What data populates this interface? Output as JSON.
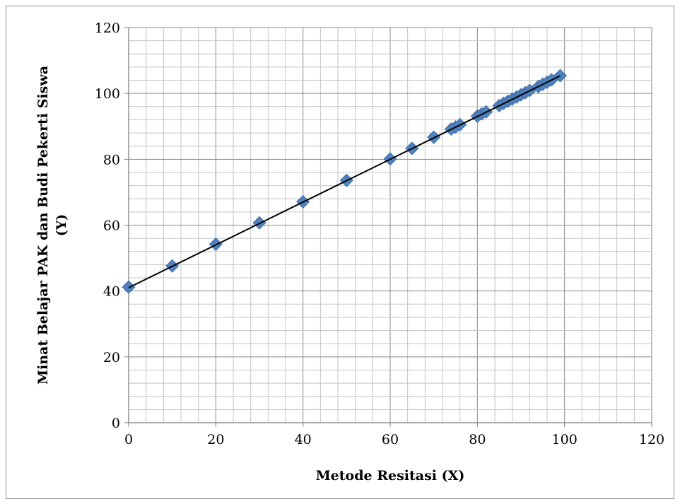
{
  "chart_data": {
    "type": "scatter",
    "title": "",
    "xlabel": "Metode Resitasi (X)",
    "ylabel_line1": "Minat  Belajar PAK dan Budi Pekerti  Siswa",
    "ylabel_line2": "(Y)",
    "xlim": [
      0,
      120
    ],
    "ylim": [
      0,
      120
    ],
    "x_major_ticks": [
      "0",
      "20",
      "40",
      "60",
      "80",
      "100",
      "120"
    ],
    "y_major_ticks": [
      "0",
      "20",
      "40",
      "60",
      "80",
      "100",
      "120"
    ],
    "minor_grid_step": 4,
    "major_grid_step": 20,
    "grid": true,
    "legend": "none",
    "marker_color": "#4f81bd",
    "marker_shape": "diamond",
    "trendline": {
      "slope": 0.65,
      "intercept": 41.0,
      "x_range": [
        0,
        99
      ],
      "color": "#000000"
    },
    "points": [
      {
        "x": 0,
        "y": 41.2
      },
      {
        "x": 10,
        "y": 47.6
      },
      {
        "x": 20,
        "y": 54.2
      },
      {
        "x": 30,
        "y": 60.7
      },
      {
        "x": 40,
        "y": 67.1
      },
      {
        "x": 50,
        "y": 73.6
      },
      {
        "x": 60,
        "y": 80.1
      },
      {
        "x": 65,
        "y": 83.3
      },
      {
        "x": 70,
        "y": 86.7
      },
      {
        "x": 74,
        "y": 89.2
      },
      {
        "x": 75,
        "y": 89.8
      },
      {
        "x": 76,
        "y": 90.5
      },
      {
        "x": 80,
        "y": 93.1
      },
      {
        "x": 81,
        "y": 93.8
      },
      {
        "x": 82,
        "y": 94.4
      },
      {
        "x": 85,
        "y": 96.3
      },
      {
        "x": 86,
        "y": 97.0
      },
      {
        "x": 87,
        "y": 97.6
      },
      {
        "x": 88,
        "y": 98.3
      },
      {
        "x": 89,
        "y": 98.9
      },
      {
        "x": 90,
        "y": 99.6
      },
      {
        "x": 91,
        "y": 100.2
      },
      {
        "x": 92,
        "y": 100.9
      },
      {
        "x": 94,
        "y": 102.1
      },
      {
        "x": 95,
        "y": 102.8
      },
      {
        "x": 96,
        "y": 103.4
      },
      {
        "x": 97,
        "y": 104.1
      },
      {
        "x": 99,
        "y": 105.4
      }
    ]
  }
}
